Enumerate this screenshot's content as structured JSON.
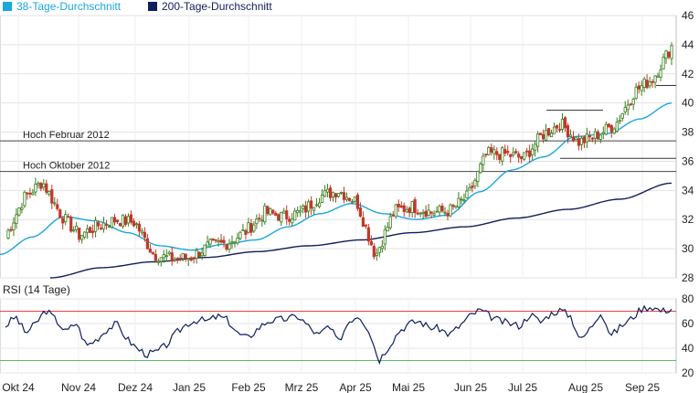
{
  "chart_data": {
    "type": "candlestick",
    "legend": {
      "placement": "top-left",
      "items": [
        {
          "label": "38-Tage-Durchschnitt",
          "color": "#1aa7de"
        },
        {
          "label": "200-Tage-Durchschnitt",
          "color": "#0f1f5c"
        }
      ]
    },
    "price_axis": {
      "min": 28,
      "max": 46,
      "ticks": [
        28,
        30,
        32,
        34,
        36,
        38,
        40,
        42,
        44,
        46
      ],
      "position": "right"
    },
    "x_labels": [
      "Okt 24",
      "Nov 24",
      "Dez 24",
      "Jan 25",
      "Feb 25",
      "Mrz 25",
      "Apr 25",
      "Mai 25",
      "Jun 25",
      "Jul 25",
      "Aug 25",
      "Sep 25"
    ],
    "grid": true,
    "colors": {
      "up": "#3a7d1e",
      "down": "#c0392b",
      "rsi_line": "#0f1f5c",
      "rsi_upper": "#d44",
      "rsi_lower": "#5cb85c"
    },
    "horizontal_lines": [
      {
        "label": "Hoch Februar 2012",
        "value": 37.4
      },
      {
        "label": "Hoch Oktober 2012",
        "value": 35.3
      }
    ],
    "price_anchors": [
      [
        "Okt 24",
        30.8
      ],
      [
        "Okt 24 mid",
        33.5
      ],
      [
        "Okt 24 late",
        34.6
      ],
      [
        "Nov 24 early",
        32.3
      ],
      [
        "Nov 24",
        30.9
      ],
      [
        "Nov 24 mid",
        31.6
      ],
      [
        "Nov 24 late",
        32.0
      ],
      [
        "Dez 24 early",
        31.8
      ],
      [
        "Dez 24",
        29.6
      ],
      [
        "Dez 24 mid",
        29.3
      ],
      [
        "Dez 24 late",
        29.4
      ],
      [
        "Jan 25",
        30.2
      ],
      [
        "Jan 25 mid",
        30.4
      ],
      [
        "Jan 25 late",
        31.2
      ],
      [
        "Feb 25",
        32.5
      ],
      [
        "Feb 25 mid",
        32.2
      ],
      [
        "Feb 25 late",
        32.5
      ],
      [
        "Mrz 25",
        33.6
      ],
      [
        "Mrz 25 mid",
        34.0
      ],
      [
        "Mrz 25 late",
        33.2
      ],
      [
        "Apr 25",
        29.5
      ],
      [
        "Apr 25 mid",
        32.6
      ],
      [
        "Apr 25 late",
        32.9
      ],
      [
        "Mai 25",
        32.5
      ],
      [
        "Mai 25 mid",
        32.6
      ],
      [
        "Mai 25 late",
        33.6
      ],
      [
        "Jun 25",
        36.5
      ],
      [
        "Jun 25 mid",
        36.5
      ],
      [
        "Jun 25 late",
        36.2
      ],
      [
        "Jul 25",
        37.8
      ],
      [
        "Jul 25 mid",
        38.6
      ],
      [
        "Jul 25 late",
        37.3
      ],
      [
        "Aug 25",
        37.8
      ],
      [
        "Aug 25 mid",
        38.6
      ],
      [
        "Aug 25 late",
        40.8
      ],
      [
        "Sep 25",
        41.7
      ],
      [
        "Sep 25 mid",
        43.9
      ]
    ],
    "ma38_anchors": [
      29.6,
      30.8,
      32.2,
      31.9,
      31.1,
      30.2,
      29.9,
      30.3,
      30.6,
      31.5,
      32.4,
      33.1,
      32.4,
      32.0,
      32.3,
      33.9,
      35.4,
      36.3,
      37.7,
      37.9,
      38.9,
      40.0
    ],
    "ma200_anchors": [
      28.0,
      28.7,
      29.1,
      29.4,
      29.8,
      30.2,
      30.6,
      31.1,
      31.5,
      32.1,
      32.7,
      33.4,
      34.5
    ],
    "rsi_panel": {
      "title": "RSI (14 Tage)",
      "axis": {
        "min": 20,
        "max": 80,
        "ticks": [
          20,
          40,
          60,
          80
        ],
        "position": "right"
      },
      "upper_line": 70,
      "lower_line": 30,
      "values": [
        58,
        66,
        52,
        60,
        71,
        63,
        53,
        61,
        42,
        47,
        55,
        60,
        48,
        40,
        35,
        37,
        43,
        53,
        60,
        63,
        62,
        66,
        63,
        52,
        48,
        56,
        62,
        63,
        64,
        66,
        58,
        50,
        58,
        45,
        62,
        67,
        55,
        30,
        42,
        54,
        60,
        62,
        57,
        56,
        51,
        58,
        66,
        71,
        66,
        62,
        60,
        58,
        68,
        61,
        68,
        71,
        66,
        46,
        57,
        70,
        50,
        58,
        64,
        72,
        74,
        70,
        72
      ]
    }
  }
}
